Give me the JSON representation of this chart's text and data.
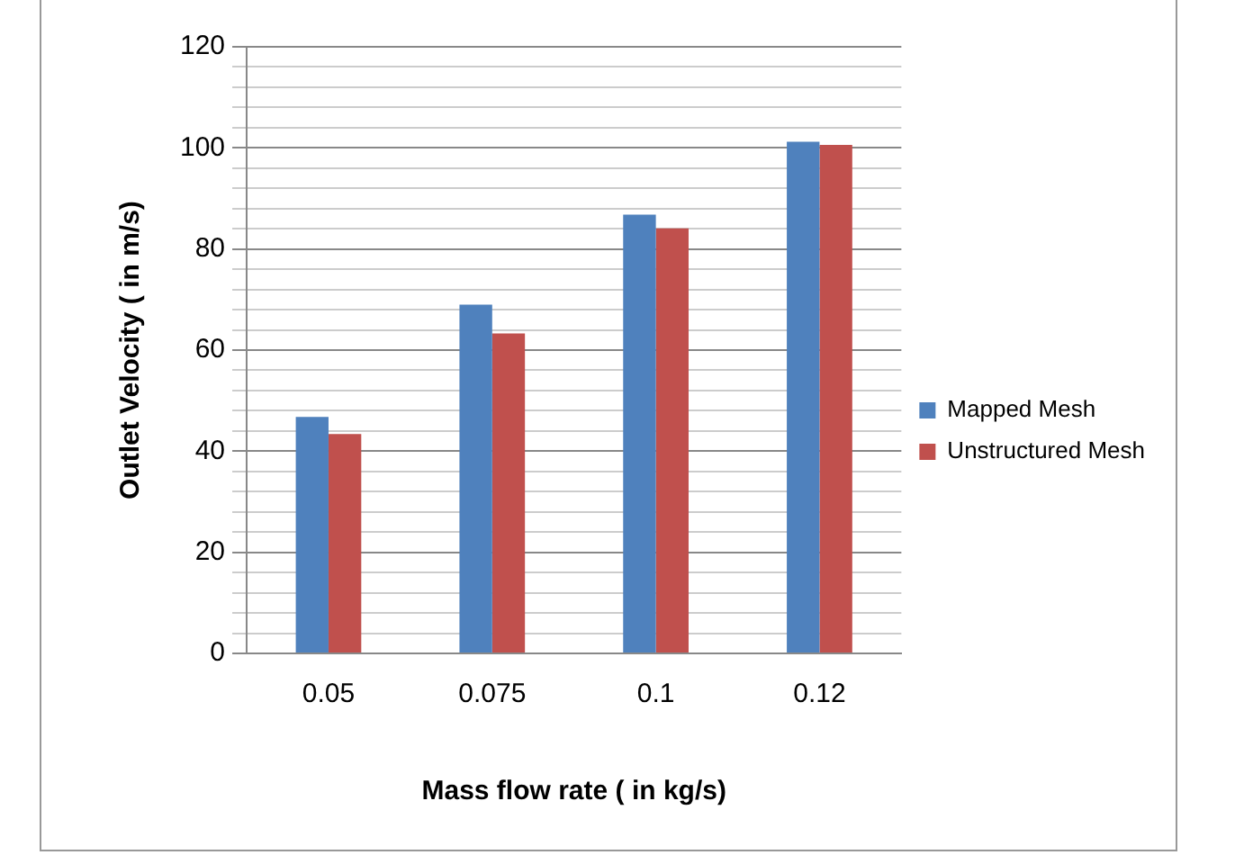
{
  "chart_data": {
    "type": "bar",
    "xlabel": "Mass flow rate ( in kg/s)",
    "ylabel": "Outlet Velocity ( in m/s)",
    "categories": [
      "0.05",
      "0.075",
      "0.1",
      "0.12"
    ],
    "series": [
      {
        "name": "Mapped Mesh",
        "color": "#4f81bd",
        "values": [
          46.8,
          69.0,
          86.8,
          101.2
        ]
      },
      {
        "name": "Unstructured Mesh",
        "color": "#c0504d",
        "values": [
          43.4,
          63.3,
          84.1,
          100.6
        ]
      }
    ],
    "ylim": [
      0,
      120
    ],
    "yticks": [
      0,
      {
        "value": 4,
        "label": null
      },
      {
        "value": 8,
        "label": null
      },
      {
        "value": 12,
        "label": null
      },
      {
        "value": 16,
        "label": null
      },
      20,
      {
        "value": 24,
        "label": null
      },
      {
        "value": 28,
        "label": null
      },
      {
        "value": 32,
        "label": null
      },
      {
        "value": 36,
        "label": null
      },
      40,
      {
        "value": 44,
        "label": null
      },
      {
        "value": 48,
        "label": null
      },
      {
        "value": 52,
        "label": null
      },
      {
        "value": 56,
        "label": null
      },
      60,
      {
        "value": 64,
        "label": null
      },
      {
        "value": 68,
        "label": null
      },
      {
        "value": 72,
        "label": null
      },
      {
        "value": 76,
        "label": null
      },
      80,
      {
        "value": 84,
        "label": null
      },
      {
        "value": 88,
        "label": null
      },
      {
        "value": 92,
        "label": null
      },
      {
        "value": 96,
        "label": null
      },
      100,
      {
        "value": 104,
        "label": null
      },
      {
        "value": 108,
        "label": null
      },
      {
        "value": 112,
        "label": null
      },
      {
        "value": 116,
        "label": null
      },
      120
    ],
    "grid": "y",
    "legend": "right"
  }
}
